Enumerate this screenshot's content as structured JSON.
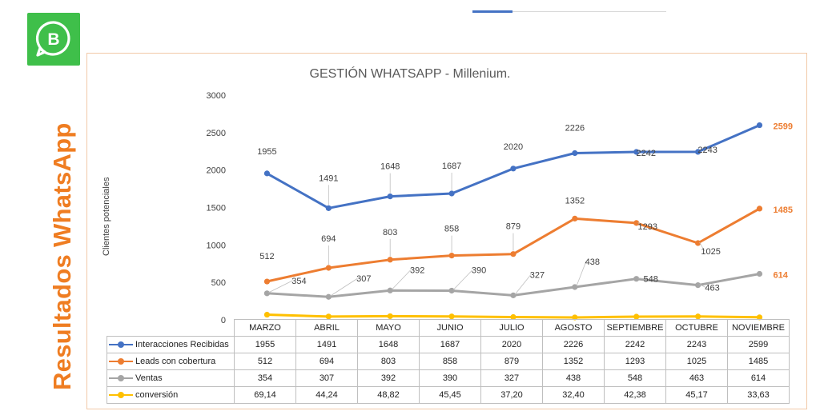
{
  "sidebar": {
    "title": "Resultados WhatsApp",
    "logo_letter": "B"
  },
  "chart_data": {
    "type": "line",
    "title": "GESTIÓN WHATSAPP - Millenium.",
    "ylabel": "Clientes potenciales",
    "xlabel": "",
    "ylim": [
      0,
      3000
    ],
    "yticks": [
      0,
      500,
      1000,
      1500,
      2000,
      2500,
      3000
    ],
    "categories": [
      "MARZO",
      "ABRIL",
      "MAYO",
      "JUNIO",
      "JULIO",
      "AGOSTO",
      "SEPTIEMBRE",
      "OCTUBRE",
      "NOVIEMBRE"
    ],
    "series": [
      {
        "name": "Interacciones Recibidas",
        "color": "#4472c4",
        "values": [
          1955,
          1491,
          1648,
          1687,
          2020,
          2226,
          2242,
          2243,
          2599
        ],
        "table": [
          "1955",
          "1491",
          "1648",
          "1687",
          "2020",
          "2226",
          "2242",
          "2243",
          "2599"
        ]
      },
      {
        "name": "Leads con cobertura",
        "color": "#ed7d31",
        "values": [
          512,
          694,
          803,
          858,
          879,
          1352,
          1293,
          1025,
          1485
        ],
        "table": [
          "512",
          "694",
          "803",
          "858",
          "879",
          "1352",
          "1293",
          "1025",
          "1485"
        ]
      },
      {
        "name": "Ventas",
        "color": "#a5a5a5",
        "values": [
          354,
          307,
          392,
          390,
          327,
          438,
          548,
          463,
          614
        ],
        "table": [
          "354",
          "307",
          "392",
          "390",
          "327",
          "438",
          "548",
          "463",
          "614"
        ]
      },
      {
        "name": "conversión",
        "color": "#ffc000",
        "values": [
          69.14,
          44.24,
          48.82,
          45.45,
          37.2,
          32.4,
          42.38,
          45.17,
          33.63
        ],
        "table": [
          "69,14",
          "44,24",
          "48,82",
          "45,45",
          "37,20",
          "32,40",
          "42,38",
          "45,17",
          "33,63"
        ]
      }
    ],
    "data_labels": [
      {
        "series": 0,
        "values": [
          "1955",
          "1491",
          "1648",
          "1687",
          "2020",
          "2226",
          "2242",
          "2243",
          "2599"
        ]
      },
      {
        "series": 1,
        "values": [
          "512",
          "694",
          "803",
          "858",
          "879",
          "1352",
          "1293",
          "1025",
          "1485"
        ]
      },
      {
        "series": 2,
        "values": [
          "354",
          "307",
          "392",
          "390",
          "327",
          "438",
          "548",
          "463",
          "614"
        ]
      }
    ]
  }
}
